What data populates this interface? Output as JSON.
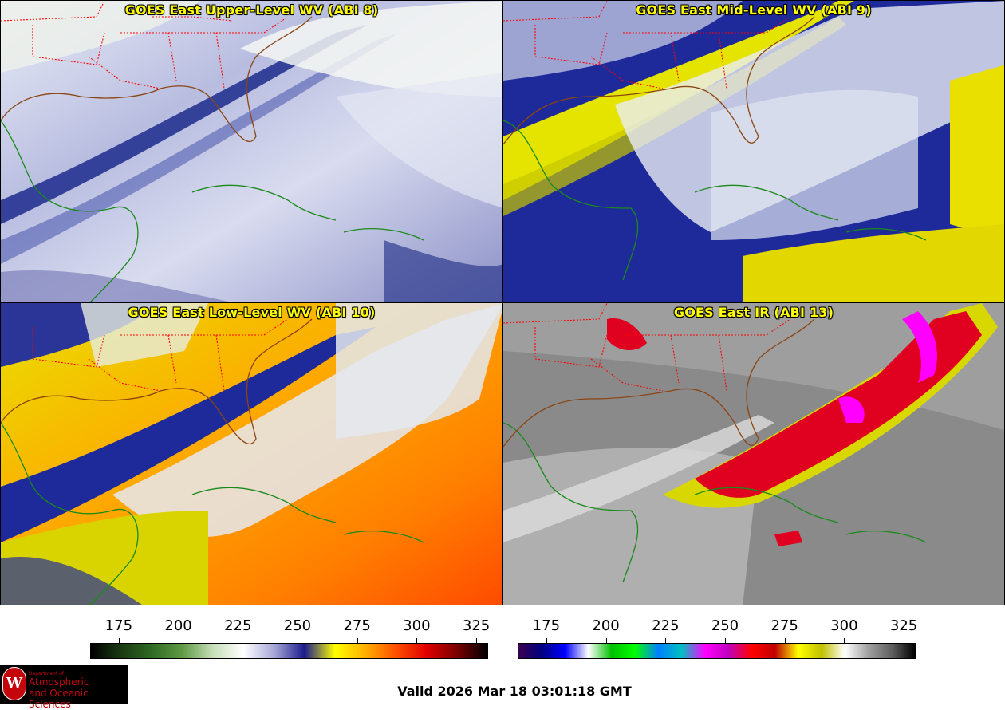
{
  "panels": [
    {
      "title": "GOES East Upper-Level WV (ABI 8)",
      "colormap": "wv"
    },
    {
      "title": "GOES East Mid-Level WV (ABI 9)",
      "colormap": "wv"
    },
    {
      "title": "GOES East Low-Level WV (ABI 10)",
      "colormap": "wv"
    },
    {
      "title": "GOES East IR (ABI 13)",
      "colormap": "ir"
    }
  ],
  "colorbars": {
    "wv": {
      "ticks": [
        "175",
        "200",
        "225",
        "250",
        "275",
        "300",
        "325"
      ],
      "min": 163,
      "max": 330,
      "colors": [
        "#000000",
        "#1a3a12",
        "#2f6b24",
        "#5f9a45",
        "#c7dfb9",
        "#ffffff",
        "#a8a8d8",
        "#1a1a8c",
        "#ffff00",
        "#ffb000",
        "#ff5000",
        "#e00000",
        "#7a0000",
        "#000000"
      ]
    },
    "ir": {
      "ticks": [
        "175",
        "200",
        "225",
        "250",
        "275",
        "300",
        "325"
      ],
      "min": 163,
      "max": 330,
      "colors": [
        "#3a0050",
        "#000080",
        "#0000ff",
        "#ffffff",
        "#00c000",
        "#00ff00",
        "#0080ff",
        "#00c0c0",
        "#ff00ff",
        "#c000c0",
        "#ff0000",
        "#c00000",
        "#ffff00",
        "#c0c000",
        "#ffffff",
        "#a0a0a0",
        "#606060",
        "#000000"
      ]
    }
  },
  "logo": {
    "line1": "Department of",
    "line2": "Atmospheric",
    "line3": "and Oceanic Sciences",
    "seal": "W"
  },
  "valid_text": "Valid 2026 Mar 18 03:01:18 GMT",
  "map_colors": {
    "coast": "#1a8a1a",
    "border": "#ff0000",
    "us_coast": "#8b4513"
  }
}
